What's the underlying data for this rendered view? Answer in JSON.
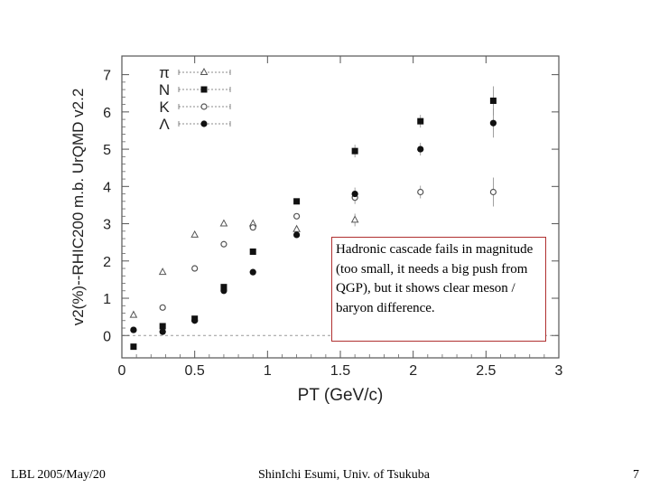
{
  "chart_data": {
    "type": "scatter",
    "ylabel": "v2(%)--RHIC200 m.b. UrQMD v2.2",
    "xlabel": "PT (GeV/c)",
    "xlim": [
      0,
      3
    ],
    "ylim": [
      -0.6,
      7.5
    ],
    "x_ticks": [
      0,
      0.5,
      1,
      1.5,
      2,
      2.5,
      3
    ],
    "x_tick_labels": [
      "0",
      "0.5",
      "1",
      "1.5",
      "2",
      "2.5",
      "3"
    ],
    "y_ticks": [
      0,
      1,
      2,
      3,
      4,
      5,
      6,
      7
    ],
    "y_tick_labels": [
      "0",
      "1",
      "2",
      "3",
      "4",
      "5",
      "6",
      "7"
    ],
    "legend_placement": "top-left",
    "series": [
      {
        "name": "π",
        "marker": "open-triangle",
        "x": [
          0.08,
          0.28,
          0.5,
          0.7,
          0.9,
          1.2,
          1.6
        ],
        "y": [
          0.55,
          1.7,
          2.7,
          3.0,
          3.0,
          2.85,
          3.1
        ]
      },
      {
        "name": "N",
        "marker": "filled-square",
        "x": [
          0.08,
          0.28,
          0.5,
          0.7,
          0.9,
          1.2,
          1.6,
          2.05,
          2.55
        ],
        "y": [
          -0.3,
          0.25,
          0.45,
          1.3,
          2.25,
          3.6,
          4.95,
          5.75,
          6.3
        ]
      },
      {
        "name": "K",
        "marker": "open-circle",
        "x": [
          0.08,
          0.28,
          0.5,
          0.7,
          0.9,
          1.2,
          1.6,
          2.05,
          2.55
        ],
        "y": [
          0.15,
          0.75,
          1.8,
          2.45,
          2.9,
          3.2,
          3.7,
          3.85,
          3.85
        ]
      },
      {
        "name": "Λ",
        "marker": "filled-circle",
        "x": [
          0.08,
          0.28,
          0.5,
          0.7,
          0.9,
          1.2,
          1.6,
          2.05,
          2.55
        ],
        "y": [
          0.15,
          0.1,
          0.4,
          1.2,
          1.7,
          2.7,
          3.8,
          5.0,
          5.7
        ]
      }
    ]
  },
  "callout": {
    "text": "Hadronic cascade fails in magnitude (too small, it needs a big push from QGP), but it shows clear meson / baryon difference."
  },
  "footer": {
    "left": "LBL 2005/May/20",
    "center": "ShinIchi Esumi, Univ. of Tsukuba",
    "page": "7"
  }
}
